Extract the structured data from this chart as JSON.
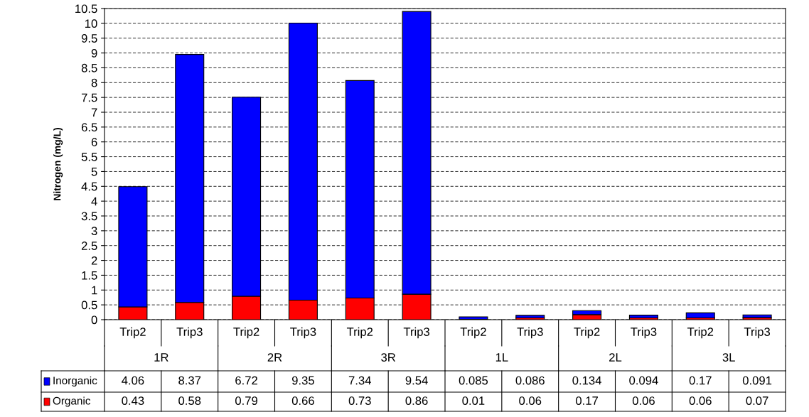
{
  "chart_data": {
    "type": "bar",
    "ylabel": "Nitrogen (mg/L)",
    "categories": [
      "Trip2",
      "Trip3",
      "Trip2",
      "Trip3",
      "Trip2",
      "Trip3",
      "Trip2",
      "Trip3",
      "Trip2",
      "Trip3",
      "Trip2",
      "Trip3"
    ],
    "annotations": [
      "1R",
      "2R",
      "3R",
      "1L",
      "2L",
      "3L"
    ],
    "stacked": true,
    "series": [
      {
        "name": "Organic",
        "color": "#ff0000",
        "values": [
          0.43,
          0.58,
          0.79,
          0.66,
          0.73,
          0.86,
          0.01,
          0.06,
          0.17,
          0.06,
          0.06,
          0.07
        ]
      },
      {
        "name": "Inorganic",
        "color": "#0000ff",
        "values": [
          4.06,
          8.37,
          6.72,
          9.35,
          7.34,
          9.54,
          0.085,
          0.086,
          0.134,
          0.094,
          0.17,
          0.091
        ]
      }
    ],
    "ylim": [
      0,
      10.5
    ],
    "yticks": [
      0,
      0.5,
      1,
      1.5,
      2,
      2.5,
      3,
      3.5,
      4,
      4.5,
      5,
      5.5,
      6,
      6.5,
      7,
      7.5,
      8,
      8.5,
      9,
      9.5,
      10,
      10.5
    ],
    "grid": "y",
    "line_style": "dashed",
    "data_labels": true,
    "legend": "bottom left"
  }
}
